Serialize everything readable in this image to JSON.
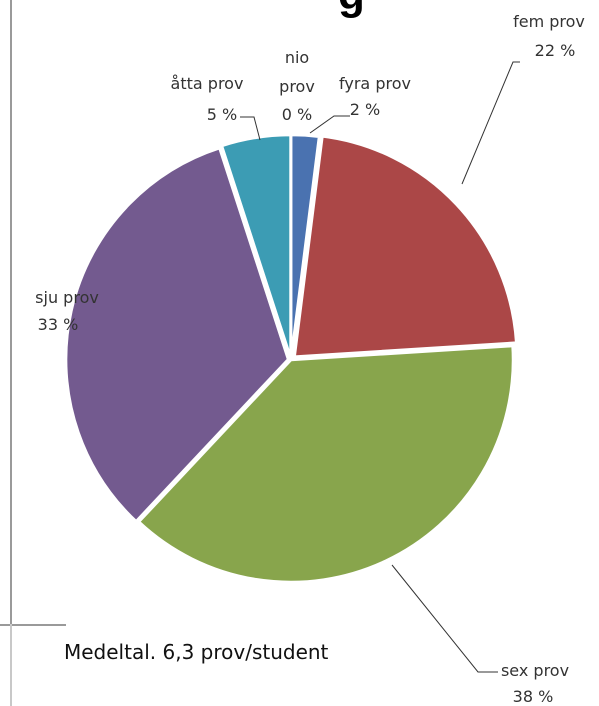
{
  "chart_data": {
    "type": "pie",
    "title": "g",
    "slices": [
      {
        "label": "fyra prov",
        "value": 2,
        "value_label": "2 %",
        "color": "#4a72b0"
      },
      {
        "label": "fem prov",
        "value": 22,
        "value_label": "22 %",
        "color": "#ab4747"
      },
      {
        "label": "sex prov",
        "value": 38,
        "value_label": "38 %",
        "color": "#88a54c"
      },
      {
        "label": "sju prov",
        "value": 33,
        "value_label": "33 %",
        "color": "#735a8f"
      },
      {
        "label": "åtta prov",
        "value": 5,
        "value_label": "5 %",
        "color": "#3c9cb4"
      },
      {
        "label": "nio prov",
        "value": 0,
        "value_label": "0 %",
        "color": "#c9804b"
      }
    ]
  },
  "footnote": "Medeltal. 6,3 prov/student"
}
